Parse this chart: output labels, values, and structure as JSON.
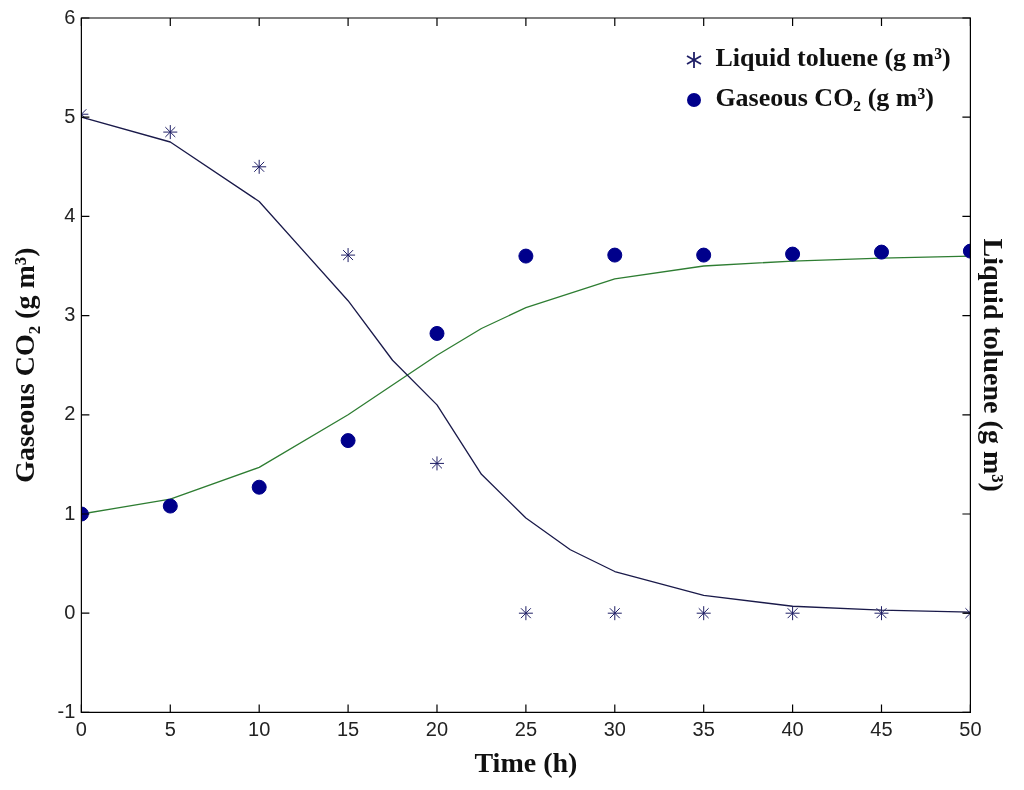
{
  "chart_data": {
    "type": "scatter",
    "xlabel": "Time (h)",
    "ylabel": "Gaseous CO₂ (g m³)",
    "y2label": "Liquid toluene (g m³)",
    "xlim": [
      0,
      50
    ],
    "xticks": [
      0,
      5,
      10,
      15,
      20,
      25,
      30,
      35,
      40,
      45,
      50
    ],
    "ylim": [
      -1,
      6
    ],
    "yticks": [
      -1,
      0,
      1,
      2,
      3,
      4,
      5,
      6
    ],
    "grid": false,
    "legend": "top right",
    "series": [
      {
        "name": "Liquid toluene (g m³)",
        "marker": "cross",
        "color": "#1f1f66",
        "x": [
          0,
          5,
          10,
          15,
          20,
          25,
          30,
          35,
          40,
          45,
          50
        ],
        "values": [
          5.03,
          4.85,
          4.5,
          3.61,
          1.51,
          0,
          0,
          0,
          0,
          0,
          0
        ]
      },
      {
        "name": "Gaseous CO₂ (g m³)",
        "marker": "circle",
        "color": "#00008b",
        "x": [
          0,
          5,
          10,
          15,
          20,
          25,
          30,
          35,
          40,
          45,
          50
        ],
        "values": [
          1.0,
          1.08,
          1.27,
          1.74,
          2.82,
          3.6,
          3.61,
          3.61,
          3.62,
          3.64,
          3.65
        ]
      },
      {
        "type": "line",
        "marker": "none",
        "color": "#1a1a4a",
        "x": [
          0,
          5,
          10,
          15,
          17.5,
          20,
          22.5,
          25,
          27.5,
          30,
          35,
          40,
          45,
          50
        ],
        "values": [
          5.0,
          4.75,
          4.15,
          3.15,
          2.55,
          2.1,
          1.4,
          0.96,
          0.64,
          0.42,
          0.18,
          0.07,
          0.03,
          0.01
        ]
      },
      {
        "type": "line",
        "marker": "none",
        "color": "#2e7d32",
        "x": [
          0,
          5,
          10,
          15,
          17.5,
          20,
          22.5,
          25,
          30,
          35,
          40,
          45,
          50
        ],
        "values": [
          1.0,
          1.15,
          1.47,
          2.0,
          2.3,
          2.6,
          2.87,
          3.08,
          3.37,
          3.5,
          3.55,
          3.58,
          3.6
        ]
      }
    ]
  }
}
